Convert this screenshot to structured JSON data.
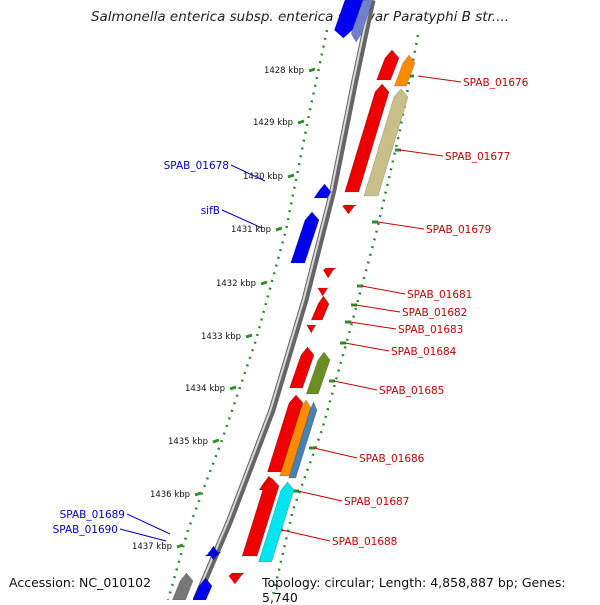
{
  "title": "Salmonella enterica subsp. enterica serovar Paratyphi B str....",
  "footer": {
    "accession": "Accession: NC_010102",
    "topology": "Topology: circular; Length: 4,858,887 bp; Genes: 5,740"
  },
  "ruler": {
    "ticks": [
      "1428 kbp",
      "1429 kbp",
      "1430 kbp",
      "1431 kbp",
      "1432 kbp",
      "1433 kbp",
      "1434 kbp",
      "1435 kbp",
      "1436 kbp",
      "1437 kbp"
    ]
  },
  "colors": {
    "forward": "#ee0000",
    "reverse": "#0000ee",
    "label_forward": "#cc0000",
    "label_reverse": "#0000cc",
    "backbone": "#888888",
    "tick": "#2e8b2e"
  },
  "genes_forward": [
    {
      "label": "SPAB_01676"
    },
    {
      "label": "SPAB_01677"
    },
    {
      "label": "SPAB_01679"
    },
    {
      "label": "SPAB_01681"
    },
    {
      "label": "SPAB_01682"
    },
    {
      "label": "SPAB_01683"
    },
    {
      "label": "SPAB_01684"
    },
    {
      "label": "SPAB_01685"
    },
    {
      "label": "SPAB_01686"
    },
    {
      "label": "SPAB_01687"
    },
    {
      "label": "SPAB_01688"
    }
  ],
  "genes_reverse": [
    {
      "label": "SPAB_01678"
    },
    {
      "label": "sifB"
    },
    {
      "label": "SPAB_01689"
    },
    {
      "label": "SPAB_01690"
    }
  ]
}
